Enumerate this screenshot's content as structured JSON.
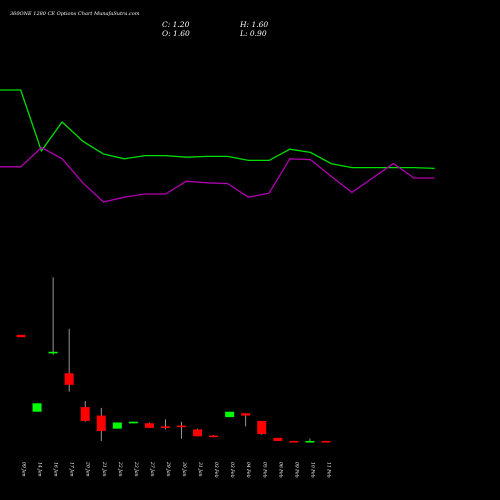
{
  "header": {
    "title": "360ONE 1280 CE Options Chart MunafaSutra.com",
    "close_label": "C: 1.20",
    "high_label": "H: 1.60",
    "open_label": "O: 1.60",
    "low_label": "L: 0.90"
  },
  "colors": {
    "background": "#000000",
    "up_candle": "#00ff00",
    "down_candle": "#ff0000",
    "line_green": "#00dd00",
    "line_purple": "#b000b0",
    "text": "#ffffff"
  },
  "chart_data": {
    "type": "candlestick",
    "categories": [
      "09 Jan",
      "14 Jan",
      "16 Jan",
      "17 Jan",
      "20 Jan",
      "21 Jan",
      "22 Jan",
      "23 Jan",
      "27 Jan",
      "29 Jan",
      "30 Jan",
      "31 Jan",
      "03 Feb",
      "03 Feb",
      "04 Feb",
      "05 Feb",
      "06 Feb",
      "09 Feb",
      "10 Feb",
      "11 Feb"
    ],
    "candles": [
      {
        "o": 14.0,
        "h": 14.0,
        "l": 13.7,
        "c": 13.7
      },
      {
        "o": 4.0,
        "h": 5.1,
        "l": 4.0,
        "c": 5.1
      },
      {
        "o": 11.6,
        "h": 21.5,
        "l": 11.4,
        "c": 11.8
      },
      {
        "o": 9.0,
        "h": 14.8,
        "l": 6.6,
        "c": 7.5
      },
      {
        "o": 4.6,
        "h": 5.4,
        "l": 2.7,
        "c": 2.8
      },
      {
        "o": 3.5,
        "h": 4.5,
        "l": 0.2,
        "c": 1.5
      },
      {
        "o": 1.8,
        "h": 2.6,
        "l": 1.8,
        "c": 2.6
      },
      {
        "o": 2.6,
        "h": 2.7,
        "l": 2.5,
        "c": 2.7
      },
      {
        "o": 2.5,
        "h": 2.6,
        "l": 1.9,
        "c": 1.9
      },
      {
        "o": 2.1,
        "h": 3.0,
        "l": 1.7,
        "c": 1.9
      },
      {
        "o": 2.2,
        "h": 2.7,
        "l": 0.5,
        "c": 2.0
      },
      {
        "o": 1.7,
        "h": 1.8,
        "l": 0.8,
        "c": 0.8
      },
      {
        "o": 0.9,
        "h": 0.95,
        "l": 0.8,
        "c": 0.85
      },
      {
        "o": 3.3,
        "h": 4.0,
        "l": 3.3,
        "c": 4.0
      },
      {
        "o": 3.8,
        "h": 3.8,
        "l": 2.1,
        "c": 3.5
      },
      {
        "o": 2.8,
        "h": 2.8,
        "l": 1.0,
        "c": 1.1
      },
      {
        "o": 0.6,
        "h": 0.6,
        "l": 0.2,
        "c": 0.2
      },
      {
        "o": 0.2,
        "h": 0.2,
        "l": 0.0,
        "c": 0.0
      },
      {
        "o": 0.0,
        "h": 0.5,
        "l": 0.0,
        "c": 0.2
      },
      {
        "o": 0.2,
        "h": 0.2,
        "l": 0.0,
        "c": 0.0
      }
    ],
    "price_ylim": [
      -1.5,
      24
    ],
    "lines": [
      {
        "color": "green",
        "points": [
          [
            0,
            100
          ],
          [
            1,
            100
          ],
          [
            2,
            62
          ],
          [
            3,
            80
          ],
          [
            4,
            68
          ],
          [
            5,
            60
          ],
          [
            6,
            57
          ],
          [
            7,
            59
          ],
          [
            8,
            59
          ],
          [
            9,
            58
          ],
          [
            10,
            58.5
          ],
          [
            11,
            58.5
          ],
          [
            12,
            56
          ],
          [
            13,
            56
          ],
          [
            14,
            63
          ],
          [
            15,
            61
          ],
          [
            16,
            54
          ],
          [
            17,
            51.5
          ],
          [
            18,
            51.5
          ],
          [
            19,
            51.5
          ],
          [
            20,
            51.5
          ],
          [
            21,
            51
          ]
        ]
      },
      {
        "color": "purple",
        "points": [
          [
            0,
            52
          ],
          [
            1,
            52
          ],
          [
            2,
            64
          ],
          [
            3,
            57
          ],
          [
            4,
            42
          ],
          [
            5,
            30
          ],
          [
            6,
            33
          ],
          [
            7,
            35
          ],
          [
            8,
            35
          ],
          [
            9,
            43
          ],
          [
            10,
            42
          ],
          [
            11,
            41.5
          ],
          [
            12,
            33
          ],
          [
            13,
            35.5
          ],
          [
            14,
            57
          ],
          [
            15,
            56.5
          ],
          [
            16,
            46
          ],
          [
            17,
            36
          ],
          [
            18,
            45
          ],
          [
            19,
            54
          ],
          [
            20,
            45
          ],
          [
            21,
            45
          ]
        ]
      }
    ],
    "line_ylim": [
      0,
      100
    ]
  }
}
